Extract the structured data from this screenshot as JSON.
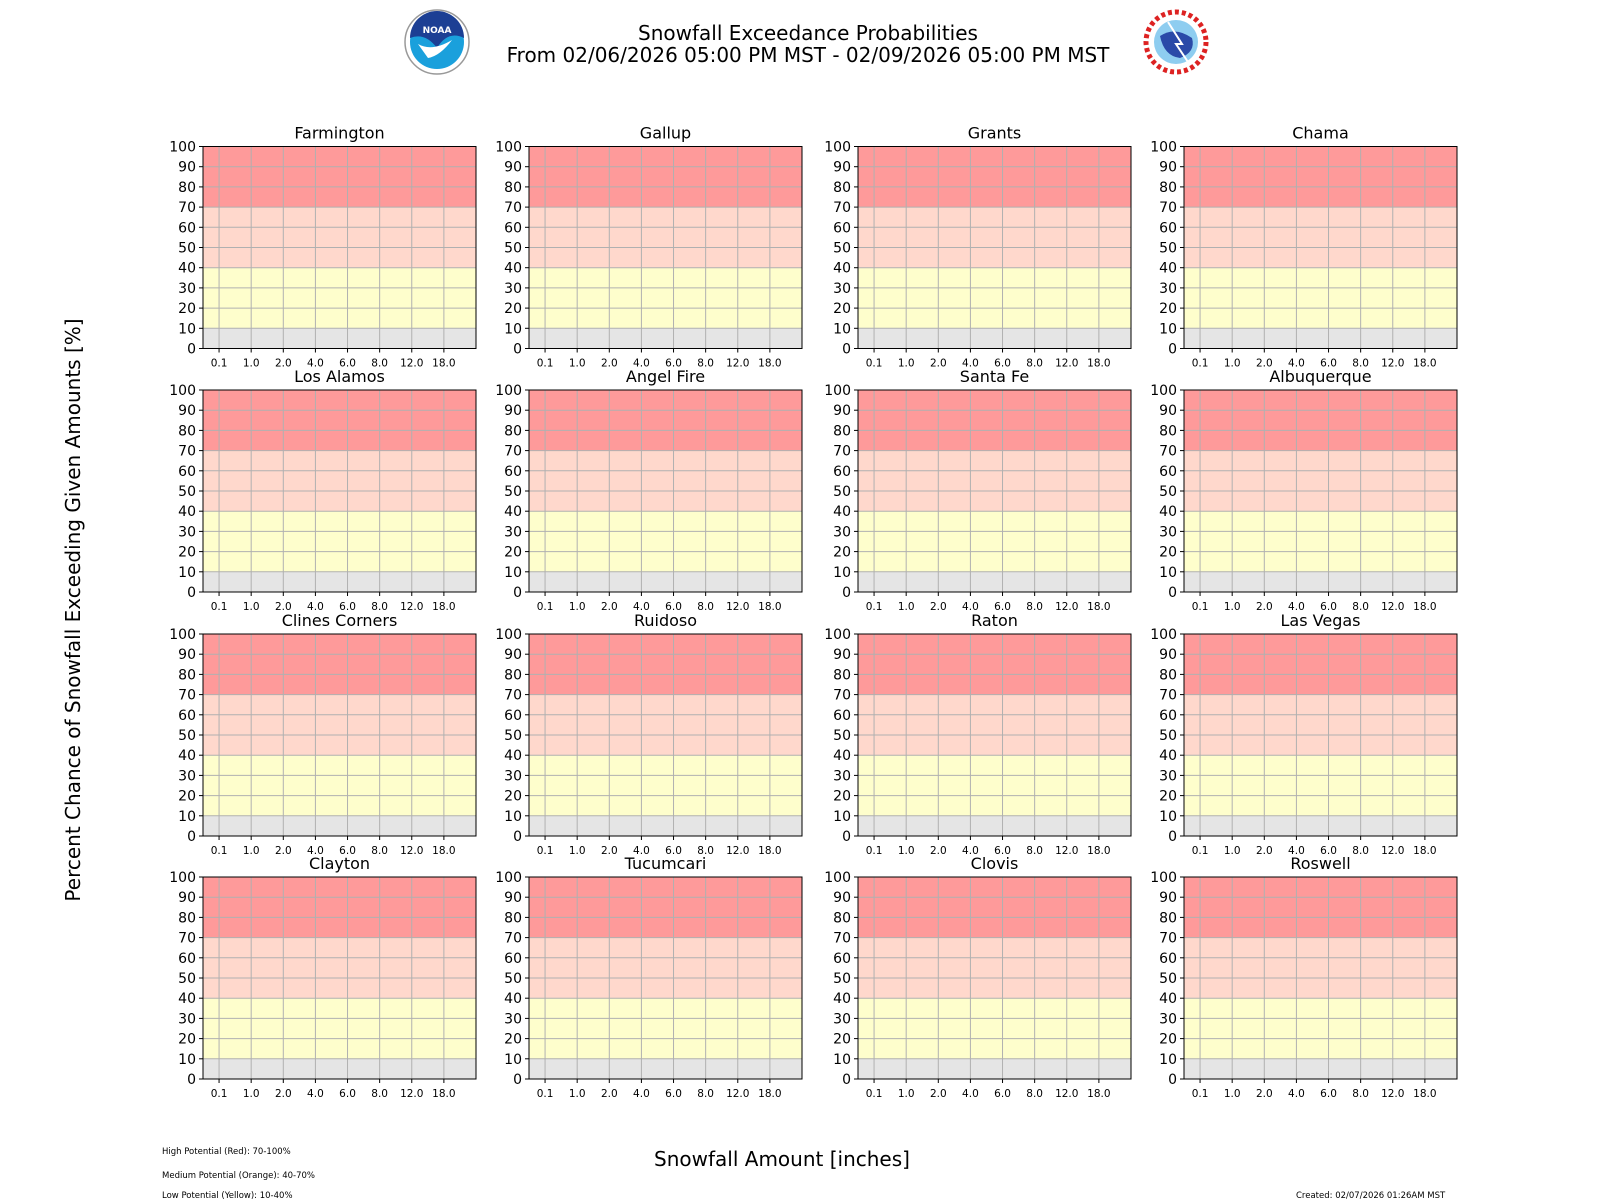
{
  "header": {
    "title": "Snowfall Exceedance Probabilities",
    "subtitle": "From 02/06/2026 05:00 PM MST - 02/09/2026 05:00 PM MST",
    "logo_left": "NOAA",
    "logo_right": "NATIONAL WEATHER SERVICE"
  },
  "footer": {
    "legend": [
      "High Potential (Red): 70-100%",
      "Medium Potential (Orange): 40-70%",
      "Low Potential (Yellow): 10-40%"
    ],
    "created": "Created: 02/07/2026 01:26AM MST"
  },
  "chart_data": {
    "type": "line",
    "xlabel": "Snowfall Amount [inches]",
    "ylabel": "Percent Chance of Snowfall Exceeding Given Amounts [%]",
    "categories": [
      "0.1",
      "1.0",
      "2.0",
      "4.0",
      "6.0",
      "8.0",
      "12.0",
      "18.0"
    ],
    "yticks": [
      0,
      10,
      20,
      30,
      40,
      50,
      60,
      70,
      80,
      90,
      100
    ],
    "ylim": [
      0,
      100
    ],
    "grid": true,
    "bands": [
      {
        "from": 70,
        "to": 100,
        "color": "#fe9a9a"
      },
      {
        "from": 40,
        "to": 70,
        "color": "#ffd8cc"
      },
      {
        "from": 10,
        "to": 40,
        "color": "#fefecc"
      },
      {
        "from": 0,
        "to": 10,
        "color": "#e5e5e5"
      }
    ],
    "panels": [
      {
        "title": "Farmington",
        "values": []
      },
      {
        "title": "Gallup",
        "values": []
      },
      {
        "title": "Grants",
        "values": []
      },
      {
        "title": "Chama",
        "values": []
      },
      {
        "title": "Los Alamos",
        "values": []
      },
      {
        "title": "Angel Fire",
        "values": []
      },
      {
        "title": "Santa Fe",
        "values": []
      },
      {
        "title": "Albuquerque",
        "values": []
      },
      {
        "title": "Clines Corners",
        "values": []
      },
      {
        "title": "Ruidoso",
        "values": []
      },
      {
        "title": "Raton",
        "values": []
      },
      {
        "title": "Las Vegas",
        "values": []
      },
      {
        "title": "Clayton",
        "values": []
      },
      {
        "title": "Tucumcari",
        "values": []
      },
      {
        "title": "Clovis",
        "values": []
      },
      {
        "title": "Roswell",
        "values": []
      }
    ]
  }
}
